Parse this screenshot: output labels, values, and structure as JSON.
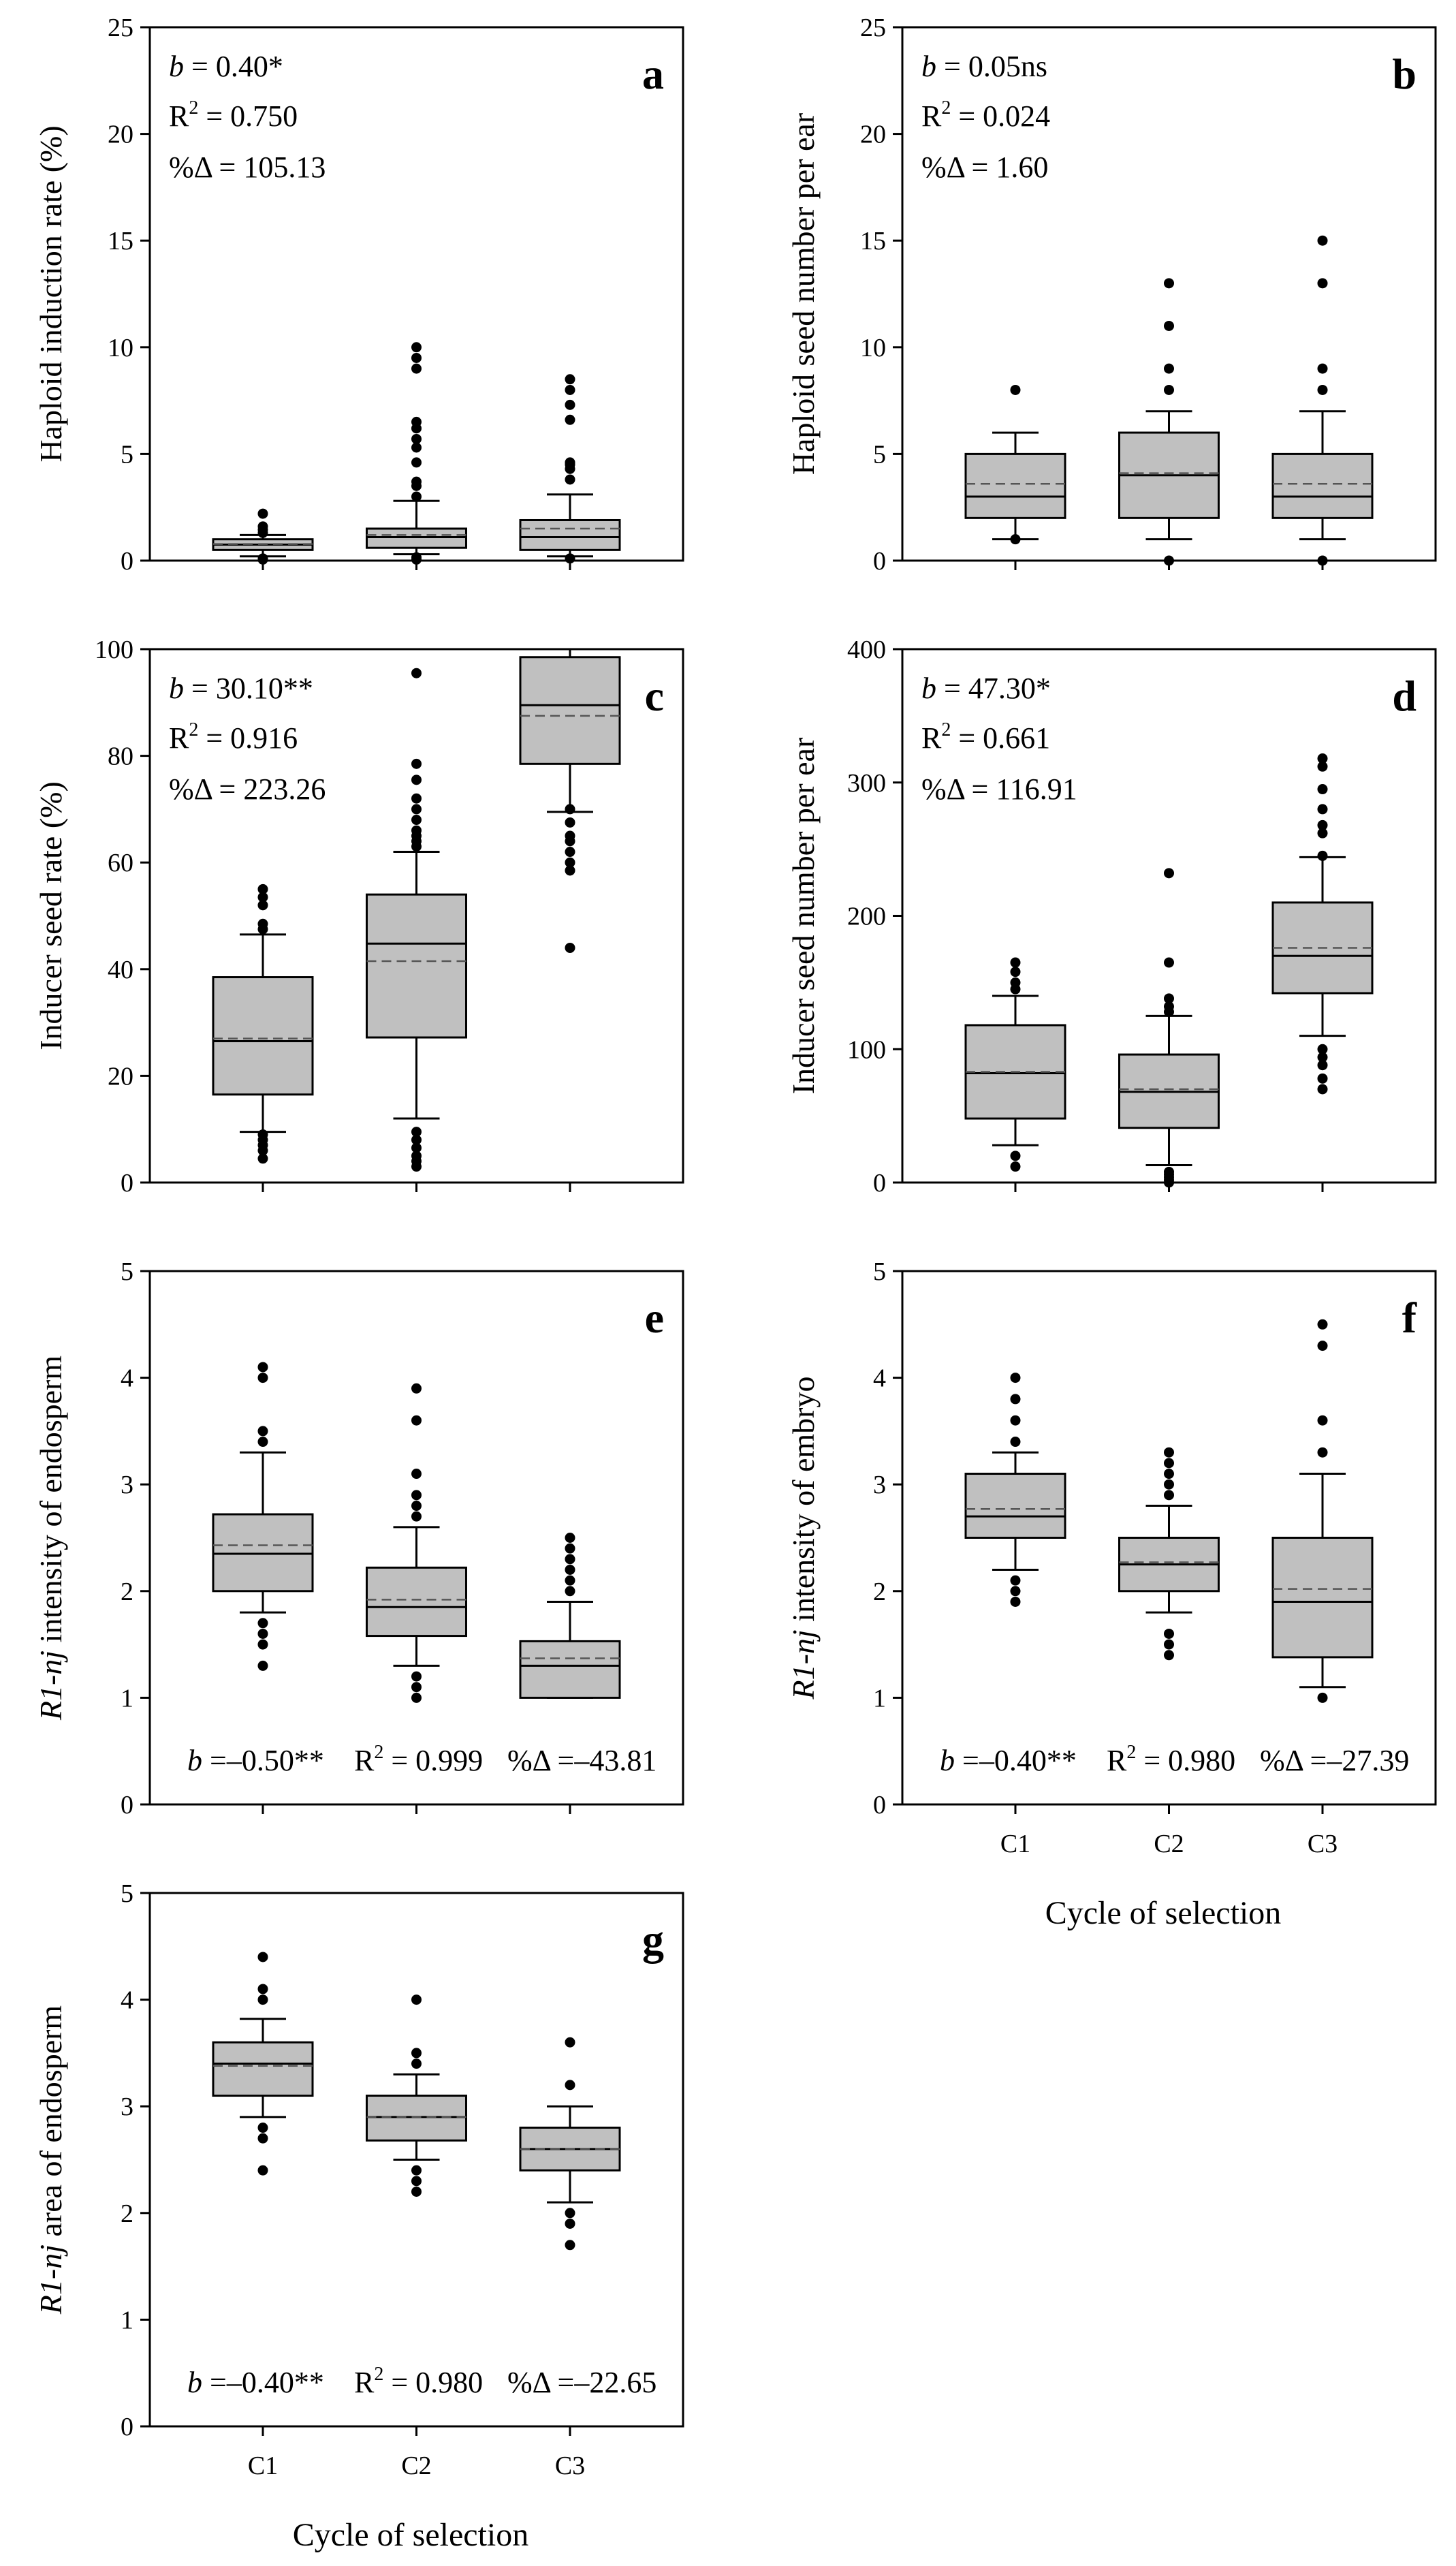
{
  "figure_xlabel": "Cycle of selection",
  "chart_data": [
    {
      "panel": "a",
      "type": "box",
      "ylabel_italic": "",
      "ylabel": "Haploid induction rate (%)",
      "ylim": [
        0,
        25
      ],
      "yticks": [
        0,
        5,
        10,
        15,
        20,
        25
      ],
      "ytick_labels": [
        "0",
        "5",
        "10",
        "15",
        "20",
        "25"
      ],
      "categories": [
        "C1",
        "C2",
        "C3"
      ],
      "show_xlabels": false,
      "stat_position": "top-left",
      "stats": {
        "b_sym": "b",
        "b_val": " = 0.40*",
        "r2_sym": "R",
        "r2_val": " = 0.750",
        "pct": "%Δ = 105.13"
      },
      "boxes": [
        {
          "min": 0.2,
          "q1": 0.5,
          "median": 0.75,
          "mean": 0.78,
          "q3": 1.0,
          "max": 1.2,
          "outliers": [
            0.05,
            0.1,
            1.3,
            1.45,
            1.6,
            2.2
          ]
        },
        {
          "min": 0.3,
          "q1": 0.6,
          "median": 1.1,
          "mean": 1.2,
          "q3": 1.5,
          "max": 2.8,
          "outliers": [
            0.05,
            0.15,
            3.0,
            3.5,
            3.7,
            4.6,
            5.3,
            5.7,
            6.2,
            6.5,
            9.0,
            9.5,
            10.0
          ]
        },
        {
          "min": 0.2,
          "q1": 0.5,
          "median": 1.1,
          "mean": 1.5,
          "q3": 1.9,
          "max": 3.1,
          "outliers": [
            0.1,
            3.8,
            4.3,
            4.5,
            4.6,
            6.6,
            7.3,
            8.0,
            8.5
          ]
        }
      ]
    },
    {
      "panel": "b",
      "type": "box",
      "ylabel_italic": "",
      "ylabel": "Haploid seed number per ear",
      "ylim": [
        0,
        25
      ],
      "yticks": [
        0,
        5,
        10,
        15,
        20,
        25
      ],
      "ytick_labels": [
        "0",
        "5",
        "10",
        "15",
        "20",
        "25"
      ],
      "categories": [
        "C1",
        "C2",
        "C3"
      ],
      "show_xlabels": false,
      "stat_position": "top-left",
      "stats": {
        "b_sym": "b",
        "b_val": " = 0.05ns",
        "r2_sym": "R",
        "r2_val": " = 0.024",
        "pct": "%Δ = 1.60"
      },
      "boxes": [
        {
          "min": 1,
          "q1": 2,
          "median": 3,
          "mean": 3.6,
          "q3": 5,
          "max": 6,
          "outliers": [
            1,
            8
          ]
        },
        {
          "min": 1,
          "q1": 2,
          "median": 4,
          "mean": 4.1,
          "q3": 6,
          "max": 7,
          "outliers": [
            0,
            8,
            9,
            11,
            13
          ]
        },
        {
          "min": 1,
          "q1": 2,
          "median": 3,
          "mean": 3.6,
          "q3": 5,
          "max": 7,
          "outliers": [
            0,
            8,
            9,
            13,
            15
          ]
        }
      ]
    },
    {
      "panel": "c",
      "type": "box",
      "ylabel_italic": "",
      "ylabel": "Inducer seed rate (%)",
      "ylim": [
        0,
        100
      ],
      "yticks": [
        0,
        20,
        40,
        60,
        80,
        100
      ],
      "ytick_labels": [
        "0",
        "20",
        "40",
        "60",
        "80",
        "100"
      ],
      "categories": [
        "C1",
        "C2",
        "C3"
      ],
      "show_xlabels": false,
      "stat_position": "top-left",
      "stats": {
        "b_sym": "b",
        "b_val": " = 30.10**",
        "r2_sym": "R",
        "r2_val": " = 0.916",
        "pct": "%Δ = 223.26"
      },
      "boxes": [
        {
          "min": 9.5,
          "q1": 16.5,
          "median": 26.5,
          "mean": 27,
          "q3": 38.5,
          "max": 46.5,
          "outliers": [
            4.5,
            6,
            7,
            8,
            9,
            47.5,
            48.5,
            52,
            53.5,
            55
          ]
        },
        {
          "min": 12,
          "q1": 27.2,
          "median": 44.8,
          "mean": 41.5,
          "q3": 54,
          "max": 62,
          "outliers": [
            3,
            4,
            5,
            6.5,
            8,
            9.5,
            63,
            64,
            65,
            66,
            68,
            70,
            72,
            75.5,
            78.5,
            95.5
          ]
        },
        {
          "min": 69.5,
          "q1": 78.5,
          "median": 89.5,
          "mean": 87.5,
          "q3": 98.5,
          "max": 100,
          "outliers": [
            44,
            58.5,
            60,
            62,
            64,
            65,
            67.5,
            70
          ]
        }
      ]
    },
    {
      "panel": "d",
      "type": "box",
      "ylabel_italic": "",
      "ylabel": "Inducer seed number per ear",
      "ylim": [
        0,
        400
      ],
      "yticks": [
        0,
        100,
        200,
        300,
        400
      ],
      "ytick_labels": [
        "0",
        "100",
        "200",
        "300",
        "400"
      ],
      "categories": [
        "C1",
        "C2",
        "C3"
      ],
      "show_xlabels": false,
      "stat_position": "top-left",
      "stats": {
        "b_sym": "b",
        "b_val": " = 47.30*",
        "r2_sym": "R",
        "r2_val": " = 0.661",
        "pct": "%Δ = 116.91"
      },
      "boxes": [
        {
          "min": 28,
          "q1": 48,
          "median": 82,
          "mean": 83,
          "q3": 118,
          "max": 140,
          "outliers": [
            12,
            20,
            145,
            150,
            158,
            165
          ]
        },
        {
          "min": 13,
          "q1": 41,
          "median": 68,
          "mean": 70,
          "q3": 96,
          "max": 125,
          "outliers": [
            0,
            2,
            4,
            6,
            8,
            128,
            132,
            138,
            165,
            232
          ]
        },
        {
          "min": 110,
          "q1": 142,
          "median": 170,
          "mean": 176,
          "q3": 210,
          "max": 244,
          "outliers": [
            70,
            78,
            88,
            94,
            100,
            245,
            262,
            268,
            280,
            295,
            312,
            318
          ]
        }
      ]
    },
    {
      "panel": "e",
      "type": "box",
      "ylabel_italic": "R1-nj",
      "ylabel": " intensity of endosperm",
      "ylim": [
        0,
        5
      ],
      "yticks": [
        0,
        1,
        2,
        3,
        4,
        5
      ],
      "ytick_labels": [
        "0",
        "1",
        "2",
        "3",
        "4",
        "5"
      ],
      "categories": [
        "C1",
        "C2",
        "C3"
      ],
      "show_xlabels": false,
      "stat_position": "bottom",
      "stats": {
        "b_sym": "b",
        "b_val": " =–0.50**",
        "r2_sym": "R",
        "r2_val": " = 0.999",
        "pct": "%Δ =–43.81"
      },
      "boxes": [
        {
          "min": 1.8,
          "q1": 2.0,
          "median": 2.35,
          "mean": 2.43,
          "q3": 2.72,
          "max": 3.3,
          "outliers": [
            1.3,
            1.5,
            1.6,
            1.7,
            3.4,
            3.5,
            4.0,
            4.1
          ]
        },
        {
          "min": 1.3,
          "q1": 1.58,
          "median": 1.85,
          "mean": 1.92,
          "q3": 2.22,
          "max": 2.6,
          "outliers": [
            1.0,
            1.1,
            1.2,
            2.7,
            2.8,
            2.9,
            3.1,
            3.6,
            3.9
          ]
        },
        {
          "min": 1.0,
          "q1": 1.0,
          "median": 1.3,
          "mean": 1.37,
          "q3": 1.53,
          "max": 1.9,
          "outliers": [
            2.0,
            2.1,
            2.2,
            2.3,
            2.4,
            2.5
          ]
        }
      ]
    },
    {
      "panel": "f",
      "type": "box",
      "ylabel_italic": "R1-nj",
      "ylabel": " intensity of embryo",
      "ylim": [
        0,
        5
      ],
      "yticks": [
        0,
        1,
        2,
        3,
        4,
        5
      ],
      "ytick_labels": [
        "0",
        "1",
        "2",
        "3",
        "4",
        "5"
      ],
      "categories": [
        "C1",
        "C2",
        "C3"
      ],
      "show_xlabels": true,
      "stat_position": "bottom",
      "stats": {
        "b_sym": "b",
        "b_val": " =–0.40**",
        "r2_sym": "R",
        "r2_val": " = 0.980",
        "pct": "%Δ =–27.39"
      },
      "boxes": [
        {
          "min": 2.2,
          "q1": 2.5,
          "median": 2.7,
          "mean": 2.77,
          "q3": 3.1,
          "max": 3.3,
          "outliers": [
            1.9,
            2.0,
            2.1,
            3.4,
            3.6,
            3.8,
            4.0
          ]
        },
        {
          "min": 1.8,
          "q1": 2.0,
          "median": 2.25,
          "mean": 2.27,
          "q3": 2.5,
          "max": 2.8,
          "outliers": [
            1.4,
            1.5,
            1.6,
            2.9,
            3.0,
            3.1,
            3.2,
            3.3
          ]
        },
        {
          "min": 1.1,
          "q1": 1.38,
          "median": 1.9,
          "mean": 2.02,
          "q3": 2.5,
          "max": 3.1,
          "outliers": [
            1.0,
            3.3,
            3.6,
            4.3,
            4.5
          ]
        }
      ]
    },
    {
      "panel": "g",
      "type": "box",
      "ylabel_italic": "R1-nj",
      "ylabel": " area of endosperm",
      "ylim": [
        0,
        5
      ],
      "yticks": [
        0,
        1,
        2,
        3,
        4,
        5
      ],
      "ytick_labels": [
        "0",
        "1",
        "2",
        "3",
        "4",
        "5"
      ],
      "categories": [
        "C1",
        "C2",
        "C3"
      ],
      "show_xlabels": true,
      "stat_position": "bottom",
      "stats": {
        "b_sym": "b",
        "b_val": " =–0.40**",
        "r2_sym": "R",
        "r2_val": " = 0.980",
        "pct": "%Δ =–22.65"
      },
      "boxes": [
        {
          "min": 2.9,
          "q1": 3.1,
          "median": 3.4,
          "mean": 3.38,
          "q3": 3.6,
          "max": 3.82,
          "outliers": [
            2.4,
            2.7,
            2.8,
            4.0,
            4.1,
            4.4
          ]
        },
        {
          "min": 2.5,
          "q1": 2.68,
          "median": 2.9,
          "mean": 2.9,
          "q3": 3.1,
          "max": 3.3,
          "outliers": [
            2.2,
            2.3,
            2.4,
            3.4,
            3.5,
            4.0
          ]
        },
        {
          "min": 2.1,
          "q1": 2.4,
          "median": 2.6,
          "mean": 2.6,
          "q3": 2.8,
          "max": 3.0,
          "outliers": [
            1.7,
            1.9,
            2.0,
            3.2,
            3.6
          ]
        }
      ]
    }
  ]
}
